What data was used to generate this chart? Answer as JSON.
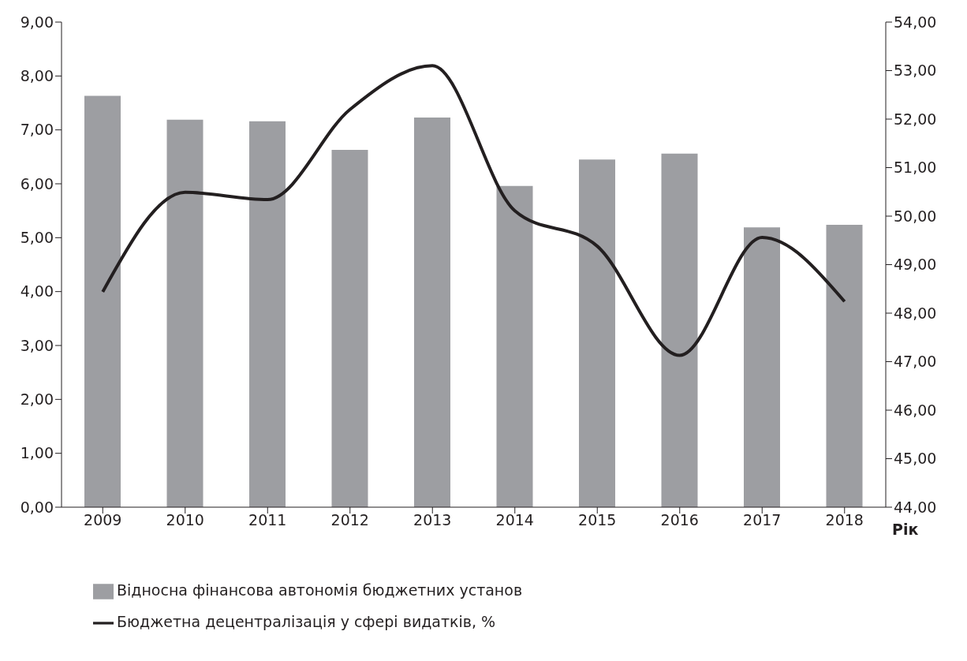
{
  "chart_data": {
    "type": "bar",
    "categories": [
      "2009",
      "2010",
      "2011",
      "2012",
      "2013",
      "2014",
      "2015",
      "2016",
      "2017",
      "2018"
    ],
    "xlabel": "Рік",
    "series": [
      {
        "name": "Відносна фінансова автономія бюджетних установ",
        "color": "#9d9ea2",
        "values": [
          7.63,
          7.19,
          7.16,
          6.63,
          7.23,
          5.96,
          6.45,
          6.56,
          5.19,
          5.24
        ]
      },
      {
        "name": "Бюджетна децентралізація у сфері видатків, %",
        "type": "line",
        "axis": "y2",
        "color": "#231f20",
        "values": [
          48.44,
          50.49,
          50.34,
          52.2,
          53.1,
          50.11,
          49.38,
          47.13,
          49.56,
          48.24
        ]
      }
    ],
    "ylim": [
      0,
      9
    ],
    "yticks": [
      {
        "value": 0,
        "label": "0,00"
      },
      {
        "value": 1,
        "label": "1,00"
      },
      {
        "value": 2,
        "label": "2,00"
      },
      {
        "value": 3,
        "label": "3,00"
      },
      {
        "value": 4,
        "label": "4,00"
      },
      {
        "value": 5,
        "label": "5,00"
      },
      {
        "value": 6,
        "label": "6,00"
      },
      {
        "value": 7,
        "label": "7,00"
      },
      {
        "value": 8,
        "label": "8,00"
      },
      {
        "value": 9,
        "label": "9,00"
      }
    ],
    "y2lim": [
      44,
      54
    ],
    "y2ticks": [
      {
        "value": 44,
        "label": "44,00"
      },
      {
        "value": 45,
        "label": "45,00"
      },
      {
        "value": 46,
        "label": "46,00"
      },
      {
        "value": 47,
        "label": "47,00"
      },
      {
        "value": 48,
        "label": "48,00"
      },
      {
        "value": 49,
        "label": "49,00"
      },
      {
        "value": 50,
        "label": "50,00"
      },
      {
        "value": 51,
        "label": "51,00"
      },
      {
        "value": 52,
        "label": "52,00"
      },
      {
        "value": 53,
        "label": "53,00"
      },
      {
        "value": 54,
        "label": "54,00"
      }
    ],
    "grid": false,
    "legend": "bottom left",
    "marker": "none",
    "line_style": "solid"
  }
}
